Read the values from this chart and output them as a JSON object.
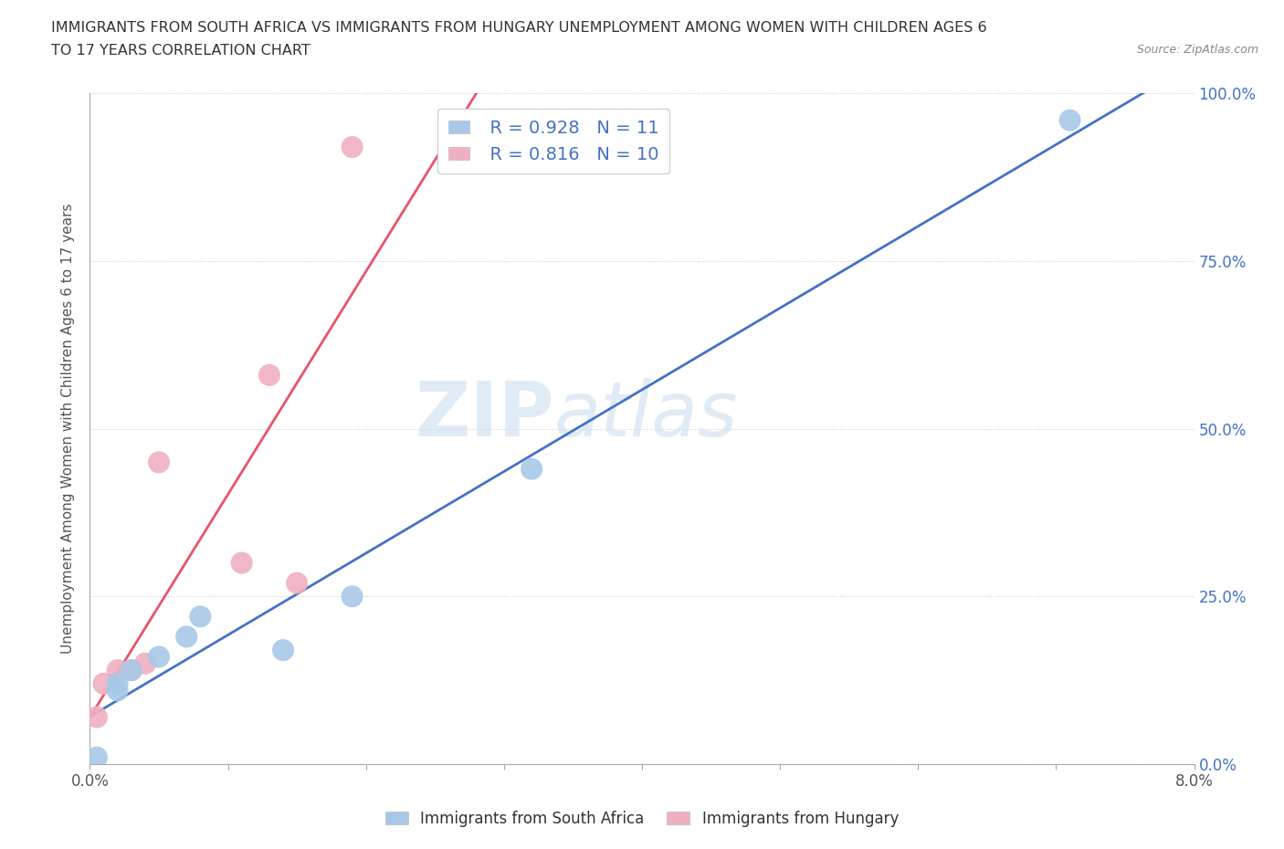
{
  "title_line1": "IMMIGRANTS FROM SOUTH AFRICA VS IMMIGRANTS FROM HUNGARY UNEMPLOYMENT AMONG WOMEN WITH CHILDREN AGES 6",
  "title_line2": "TO 17 YEARS CORRELATION CHART",
  "source_text": "Source: ZipAtlas.com",
  "ylabel": "Unemployment Among Women with Children Ages 6 to 17 years",
  "xlim": [
    0.0,
    0.08
  ],
  "ylim": [
    0.0,
    1.0
  ],
  "xticks": [
    0.0,
    0.01,
    0.02,
    0.03,
    0.04,
    0.05,
    0.06,
    0.07,
    0.08
  ],
  "xticklabels_ends": [
    "0.0%",
    "8.0%"
  ],
  "yticks": [
    0.0,
    0.25,
    0.5,
    0.75,
    1.0
  ],
  "yticklabels": [
    "0.0%",
    "25.0%",
    "50.0%",
    "75.0%",
    "100.0%"
  ],
  "south_africa_color": "#A8C8E8",
  "hungary_color": "#F0B0C0",
  "south_africa_R": "0.928",
  "south_africa_N": "11",
  "hungary_R": "0.816",
  "hungary_N": "10",
  "legend_label_sa": "Immigrants from South Africa",
  "legend_label_hu": "Immigrants from Hungary",
  "watermark_line1": "ZIP",
  "watermark_line2": "atlas",
  "south_africa_x": [
    0.0005,
    0.002,
    0.002,
    0.003,
    0.005,
    0.007,
    0.008,
    0.014,
    0.019,
    0.032,
    0.071
  ],
  "south_africa_y": [
    0.01,
    0.11,
    0.12,
    0.14,
    0.16,
    0.19,
    0.22,
    0.17,
    0.25,
    0.44,
    0.96
  ],
  "hungary_x": [
    0.0005,
    0.001,
    0.002,
    0.003,
    0.004,
    0.005,
    0.011,
    0.013,
    0.015,
    0.019
  ],
  "hungary_y": [
    0.07,
    0.12,
    0.14,
    0.14,
    0.15,
    0.45,
    0.3,
    0.58,
    0.27,
    0.92
  ],
  "south_africa_marker_size": 300,
  "hungary_marker_size": 300,
  "line_color_sa": "#4472C4",
  "line_color_hu": "#E8536A",
  "background_color": "#FFFFFF",
  "grid_color": "#CCCCCC",
  "tick_color_y": "#4472C4",
  "tick_color_x": "#555555"
}
